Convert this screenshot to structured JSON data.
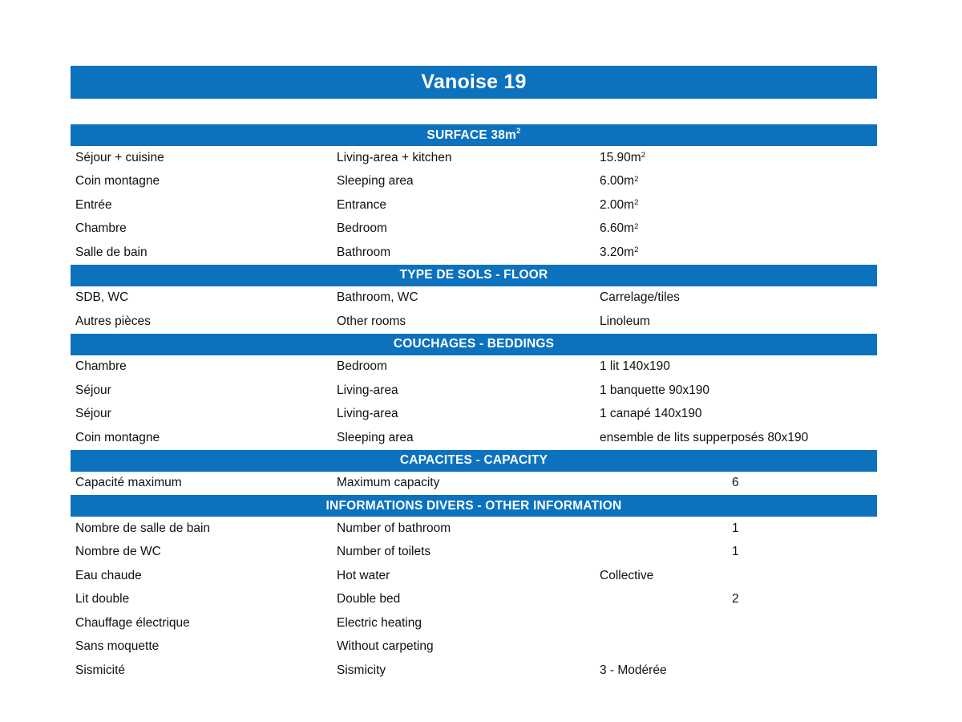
{
  "accent_color": "#0d72bd",
  "title": "Vanoise 19",
  "sections": [
    {
      "header": "SURFACE 38m²",
      "rows": [
        {
          "fr": "Séjour + cuisine",
          "en": "Living-area + kitchen",
          "value": "15.90m²",
          "num": ""
        },
        {
          "fr": "Coin montagne",
          "en": "Sleeping area",
          "value": "6.00m²",
          "num": ""
        },
        {
          "fr": "Entrée",
          "en": "Entrance",
          "value": "2.00m²",
          "num": ""
        },
        {
          "fr": "Chambre",
          "en": "Bedroom",
          "value": "6.60m²",
          "num": ""
        },
        {
          "fr": "Salle de bain",
          "en": "Bathroom",
          "value": "3.20m²",
          "num": ""
        }
      ]
    },
    {
      "header": "TYPE DE SOLS - FLOOR",
      "rows": [
        {
          "fr": "SDB, WC",
          "en": "Bathroom, WC",
          "value": "Carrelage/tiles",
          "num": ""
        },
        {
          "fr": "Autres pièces",
          "en": "Other rooms",
          "value": "Linoleum",
          "num": ""
        }
      ]
    },
    {
      "header": "COUCHAGES - BEDDINGS",
      "rows": [
        {
          "fr": "Chambre",
          "en": "Bedroom",
          "value": "1 lit 140x190",
          "num": ""
        },
        {
          "fr": "Séjour",
          "en": "Living-area",
          "value": "1 banquette 90x190",
          "num": ""
        },
        {
          "fr": "Séjour",
          "en": "Living-area",
          "value": "1 canapé 140x190",
          "num": ""
        },
        {
          "fr": "Coin montagne",
          "en": "Sleeping area",
          "value": "ensemble de lits supperposés 80x190",
          "num": ""
        }
      ]
    },
    {
      "header": "CAPACITES - CAPACITY",
      "rows": [
        {
          "fr": "Capacité maximum",
          "en": "Maximum capacity",
          "value": "",
          "num": "6"
        }
      ]
    },
    {
      "header": "INFORMATIONS DIVERS - OTHER INFORMATION",
      "rows": [
        {
          "fr": "Nombre de salle de bain",
          "en": "Number of bathroom",
          "value": "",
          "num": "1"
        },
        {
          "fr": "Nombre de WC",
          "en": "Number of toilets",
          "value": "",
          "num": "1"
        },
        {
          "fr": "Eau chaude",
          "en": "Hot water",
          "value": "Collective",
          "num": ""
        },
        {
          "fr": "Lit double",
          "en": "Double bed",
          "value": "",
          "num": "2"
        },
        {
          "fr": "Chauffage électrique",
          "en": "Electric heating",
          "value": "",
          "num": ""
        },
        {
          "fr": "Sans moquette",
          "en": "Without carpeting",
          "value": "",
          "num": ""
        },
        {
          "fr": "Sismicité",
          "en": "Sismicity",
          "value": "3 - Modérée",
          "num": ""
        }
      ]
    }
  ]
}
